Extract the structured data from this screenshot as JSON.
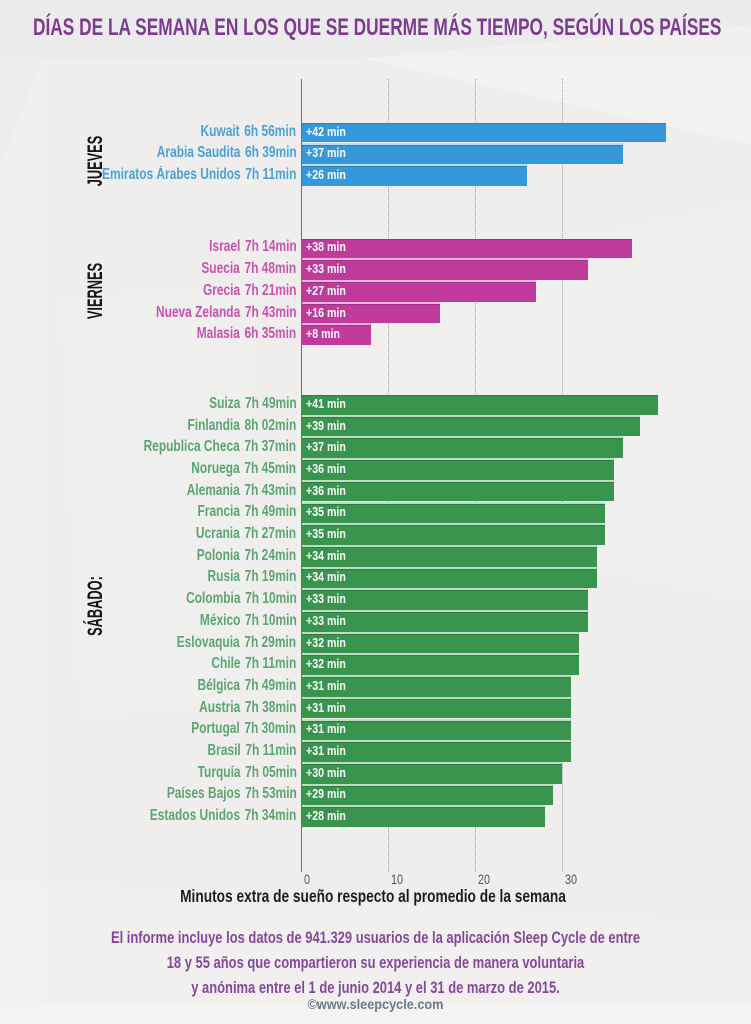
{
  "title": "DÍAS DE LA SEMANA EN LOS QUE SE DUERME MÁS TIEMPO, SEGÚN LOS PAÍSES",
  "footer": {
    "lines": [
      "El informe incluye los datos de 941.329 usuarios de la aplicación Sleep Cycle de entre",
      "18 y 55 años que compartieron su experiencia de manera voluntaria",
      "y anónima entre el 1 de junio 2014 y el 31 de marzo de 2015."
    ],
    "credit": "©www.sleepcycle.com"
  },
  "colors": {
    "title_purple": "#7d3b90",
    "footer_purple": "#85489a",
    "credit_gray": "#66778a",
    "thursday_blue": "#3498db",
    "friday_magenta": "#c03a9c",
    "saturday_green": "#39944d",
    "background": "#efeeed"
  },
  "chart_data": {
    "type": "bar",
    "orientation": "horizontal",
    "title": "DÍAS DE LA SEMANA EN LOS QUE SE DUERME MÁS TIEMPO, SEGÚN LOS PAÍSES",
    "xlabel": "Minutos extra de sueño respecto al promedio de la semana",
    "xlim": [
      0,
      43
    ],
    "xticks": [
      0,
      10,
      20,
      30
    ],
    "grid": "vertical-dotted",
    "legend": "none",
    "value_unit": "min",
    "groups": [
      {
        "label": "JUEVES",
        "bar_color": "#3498db",
        "text_color": "#4ba1d8",
        "rows": [
          {
            "country": "Kuwait",
            "sleep": "6h 56min",
            "extra_min": 42,
            "bar_label": "+42 min"
          },
          {
            "country": "Arabia Saudita",
            "sleep": "6h 39min",
            "extra_min": 37,
            "bar_label": "+37 min"
          },
          {
            "country": "Emiratos Árabes Unidos",
            "sleep": "7h 11min",
            "extra_min": 26,
            "bar_label": "+26 min"
          }
        ]
      },
      {
        "label": "VIERNES",
        "bar_color": "#c03a9c",
        "text_color": "#c653ae",
        "rows": [
          {
            "country": "Israel",
            "sleep": "7h 14min",
            "extra_min": 38,
            "bar_label": "+38 min"
          },
          {
            "country": "Suecia",
            "sleep": "7h 48min",
            "extra_min": 33,
            "bar_label": "+33 min"
          },
          {
            "country": "Grecia",
            "sleep": "7h 21min",
            "extra_min": 27,
            "bar_label": "+27 min"
          },
          {
            "country": "Nueva Zelanda",
            "sleep": "7h 43min",
            "extra_min": 16,
            "bar_label": "+16 min"
          },
          {
            "country": "Malasia",
            "sleep": "6h 35min",
            "extra_min": 8,
            "bar_label": "+8 min"
          }
        ]
      },
      {
        "label": "SÁBADO:",
        "bar_color": "#39944d",
        "text_color": "#5ca571",
        "rows": [
          {
            "country": "Suiza",
            "sleep": "7h 49min",
            "extra_min": 41,
            "bar_label": "+41 min"
          },
          {
            "country": "Finlandia",
            "sleep": "8h 02min",
            "extra_min": 39,
            "bar_label": "+39 min"
          },
          {
            "country": "Republica Checa",
            "sleep": "7h 37min",
            "extra_min": 37,
            "bar_label": "+37 min"
          },
          {
            "country": "Noruega",
            "sleep": "7h 45min",
            "extra_min": 36,
            "bar_label": "+36 min"
          },
          {
            "country": "Alemania",
            "sleep": "7h 43min",
            "extra_min": 36,
            "bar_label": "+36 min"
          },
          {
            "country": "Francia",
            "sleep": "7h 49min",
            "extra_min": 35,
            "bar_label": "+35 min"
          },
          {
            "country": "Ucrania",
            "sleep": "7h 27min",
            "extra_min": 35,
            "bar_label": "+35 min"
          },
          {
            "country": "Polonia",
            "sleep": "7h 24min",
            "extra_min": 34,
            "bar_label": "+34 min"
          },
          {
            "country": "Rusia",
            "sleep": "7h 19min",
            "extra_min": 34,
            "bar_label": "+34 min"
          },
          {
            "country": "Colombia",
            "sleep": "7h 10min",
            "extra_min": 33,
            "bar_label": "+33 min"
          },
          {
            "country": "México",
            "sleep": "7h 10min",
            "extra_min": 33,
            "bar_label": "+33 min"
          },
          {
            "country": "Eslovaquia",
            "sleep": "7h 29min",
            "extra_min": 32,
            "bar_label": "+32 min"
          },
          {
            "country": "Chile",
            "sleep": "7h 11min",
            "extra_min": 32,
            "bar_label": "+32 min"
          },
          {
            "country": "Bélgica",
            "sleep": "7h 49min",
            "extra_min": 31,
            "bar_label": "+31 min"
          },
          {
            "country": "Austria",
            "sleep": "7h 38min",
            "extra_min": 31,
            "bar_label": "+31 min"
          },
          {
            "country": "Portugal",
            "sleep": "7h 30min",
            "extra_min": 31,
            "bar_label": "+31 min"
          },
          {
            "country": "Brasil",
            "sleep": "7h 11min",
            "extra_min": 31,
            "bar_label": "+31 min"
          },
          {
            "country": "Turquía",
            "sleep": "7h 05min",
            "extra_min": 30,
            "bar_label": "+30 min"
          },
          {
            "country": "Países Bajos",
            "sleep": "7h 53min",
            "extra_min": 29,
            "bar_label": "+29 min"
          },
          {
            "country": "Estados Unidos",
            "sleep": "7h 34min",
            "extra_min": 28,
            "bar_label": "+28 min"
          }
        ]
      }
    ]
  }
}
